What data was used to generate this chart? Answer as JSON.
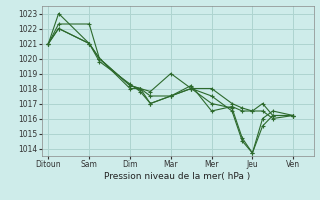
{
  "background_color": "#ceecea",
  "grid_color": "#aed4d0",
  "line_color": "#2d6a2d",
  "xlabel": "Pression niveau de la mer( hPa )",
  "xtick_labels": [
    "Ditoun",
    "Sam",
    "Dim",
    "Mar",
    "Mer",
    "Jeu",
    "Ven"
  ],
  "xtick_positions": [
    0,
    24,
    48,
    72,
    96,
    120,
    144
  ],
  "ylim": [
    1013.5,
    1023.5
  ],
  "xlim": [
    -4,
    156
  ],
  "yticks": [
    1014,
    1015,
    1016,
    1017,
    1018,
    1019,
    1020,
    1021,
    1022,
    1023
  ],
  "series": [
    {
      "x": [
        0,
        6,
        24,
        30,
        48,
        54,
        60,
        72,
        84,
        96,
        108,
        114,
        120,
        126,
        132,
        144
      ],
      "y": [
        1021,
        1023,
        1021,
        1020,
        1018.2,
        1018.0,
        1017.5,
        1017.5,
        1018.0,
        1018.0,
        1017.0,
        1016.7,
        1016.5,
        1017.0,
        1016.2,
        1016.2
      ]
    },
    {
      "x": [
        0,
        6,
        24,
        30,
        48,
        54,
        60,
        72,
        84,
        96,
        108,
        114,
        120,
        126,
        132,
        144
      ],
      "y": [
        1021,
        1022.3,
        1022.3,
        1020,
        1018.0,
        1018.0,
        1017.8,
        1019.0,
        1018.0,
        1017.5,
        1016.5,
        1014.5,
        1013.7,
        1015.5,
        1016.2,
        1016.2
      ]
    },
    {
      "x": [
        0,
        6,
        24,
        30,
        48,
        54,
        60,
        72,
        84,
        96,
        108,
        114,
        120,
        126,
        132,
        144
      ],
      "y": [
        1021,
        1022.0,
        1021.0,
        1019.8,
        1018.3,
        1017.8,
        1017.0,
        1017.5,
        1018.0,
        1017.0,
        1016.7,
        1014.7,
        1013.7,
        1016.0,
        1016.5,
        1016.2
      ]
    },
    {
      "x": [
        0,
        6,
        24,
        30,
        48,
        54,
        60,
        72,
        84,
        96,
        108,
        114,
        120,
        126,
        132,
        144
      ],
      "y": [
        1021,
        1022.0,
        1021.0,
        1020.0,
        1018.2,
        1018.0,
        1017.0,
        1017.5,
        1018.2,
        1016.5,
        1016.8,
        1016.5,
        1016.5,
        1016.5,
        1016.0,
        1016.2
      ]
    }
  ],
  "marker": "+",
  "markersize": 3,
  "linewidth": 0.8,
  "tick_fontsize": 5.5,
  "xlabel_fontsize": 6.5
}
